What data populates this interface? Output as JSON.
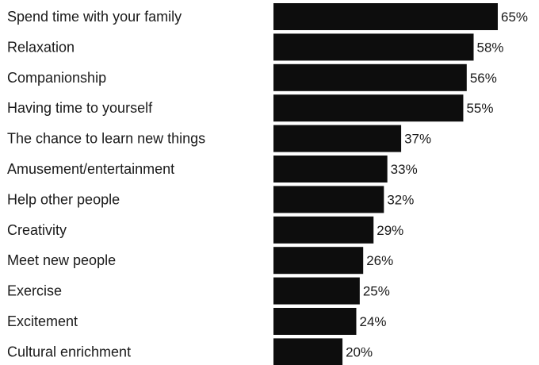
{
  "chart_data": {
    "type": "bar",
    "orientation": "horizontal",
    "categories": [
      "Spend time with your family",
      "Relaxation",
      "Companionship",
      "Having time to yourself",
      "The chance to learn new things",
      "Amusement/entertainment",
      "Help other people",
      "Creativity",
      "Meet new people",
      "Exercise",
      "Excitement",
      "Cultural enrichment"
    ],
    "values": [
      65,
      58,
      56,
      55,
      37,
      33,
      32,
      29,
      26,
      25,
      24,
      20
    ],
    "value_labels": [
      "65%",
      "58%",
      "56%",
      "55%",
      "37%",
      "33%",
      "32%",
      "29%",
      "26%",
      "25%",
      "24%",
      "20%"
    ],
    "title": "",
    "xlabel": "",
    "ylabel": "",
    "xlim": [
      0,
      65
    ],
    "grid": false,
    "legend": "none",
    "bar_color": "#0d0d0d"
  }
}
